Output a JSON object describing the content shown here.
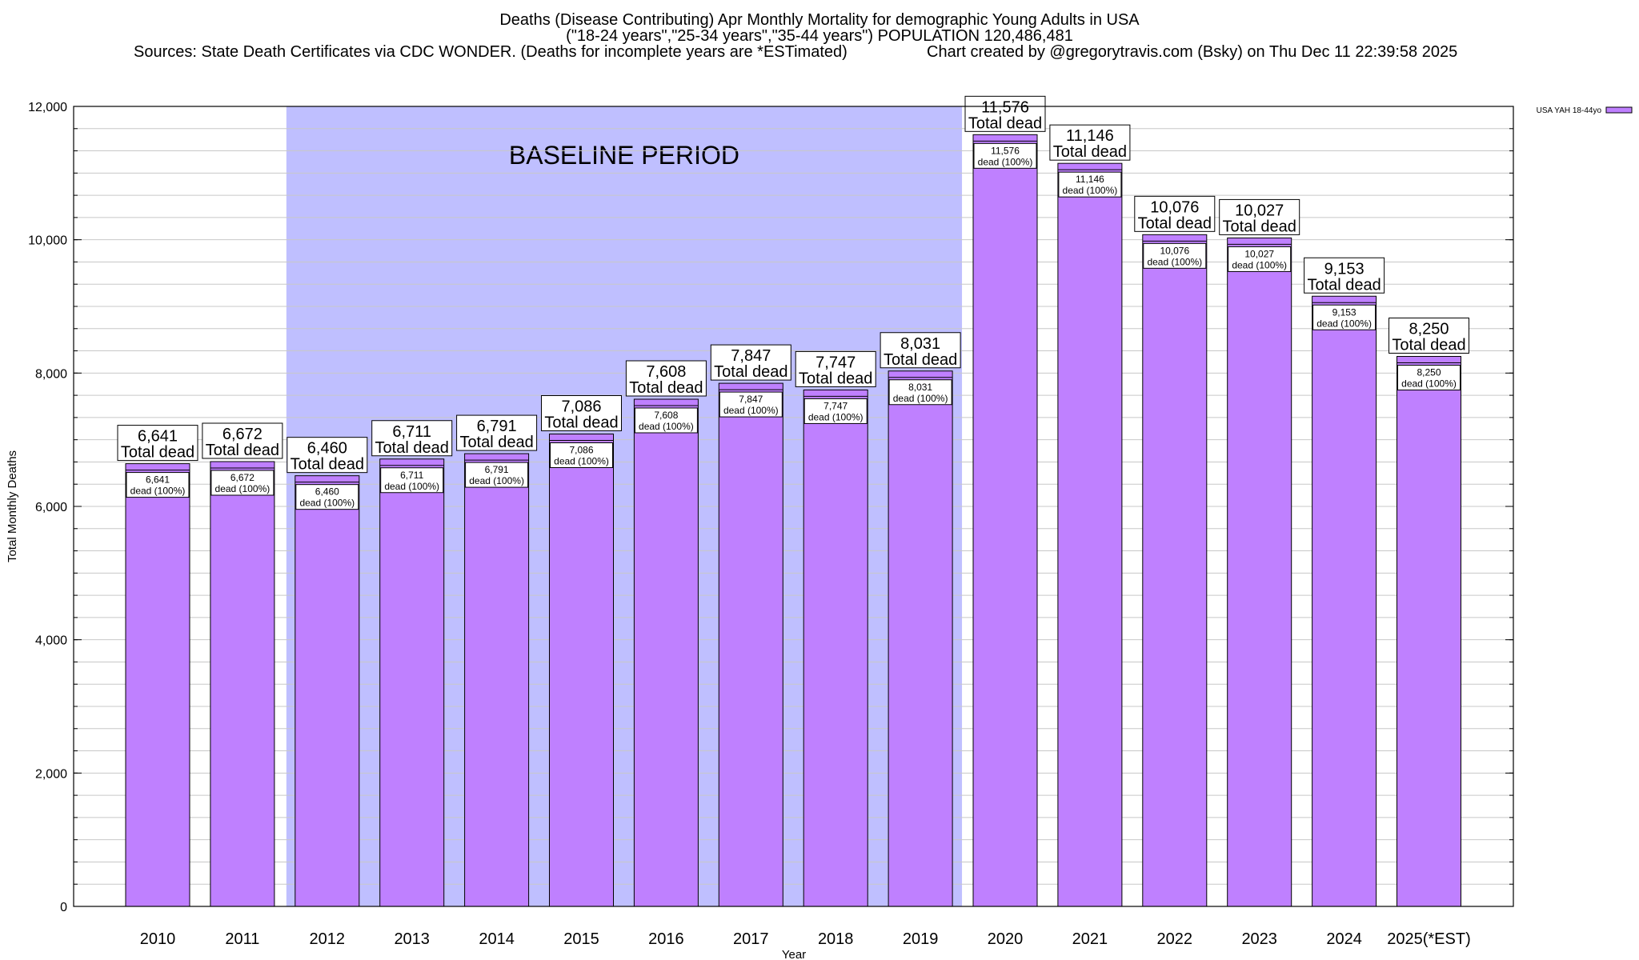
{
  "title": {
    "line1": "Deaths (Disease Contributing) Apr Monthly Mortality for demographic Young Adults in USA",
    "line2": "(\"18-24 years\",\"25-34 years\",\"35-44 years\") POPULATION 120,486,481",
    "sources": "Sources: State Death Certificates via CDC WONDER. (Deaths for incomplete years are *ESTimated)",
    "credit": "Chart created by @gregorytravis.com (Bsky) on Thu Dec 11 22:39:58 2025"
  },
  "colors": {
    "bar": "#bf80ff",
    "bar_cap": "#a060f0",
    "baseline_band": "#bfbfff",
    "grid": "#c8c8c8"
  },
  "chart_data": {
    "type": "bar",
    "xlabel": "Year",
    "ylabel": "Total Monthly Deaths",
    "ylim": [
      0,
      12000
    ],
    "yticks": [
      0,
      2000,
      4000,
      6000,
      8000,
      10000,
      12000
    ],
    "ytick_labels": [
      "0",
      "2,000",
      "4,000",
      "6,000",
      "8,000",
      "10,000",
      "12,000"
    ],
    "categories": [
      "2010",
      "2011",
      "2012",
      "2013",
      "2014",
      "2015",
      "2016",
      "2017",
      "2018",
      "2019",
      "2020",
      "2021",
      "2022",
      "2023",
      "2024",
      "2025(*EST)"
    ],
    "series": [
      {
        "name": "USA YAH 18-44yo",
        "values": [
          6641,
          6672,
          6460,
          6711,
          6791,
          7086,
          7608,
          7847,
          7747,
          8031,
          11576,
          11146,
          10076,
          10027,
          9153,
          8250
        ]
      }
    ],
    "value_labels": [
      "6,641",
      "6,672",
      "6,460",
      "6,711",
      "6,791",
      "7,086",
      "7,608",
      "7,847",
      "7,747",
      "8,031",
      "11,576",
      "11,146",
      "10,076",
      "10,027",
      "9,153",
      "8,250"
    ],
    "total_label_text": "Total dead",
    "inner_label_text": "dead (100%)",
    "annotation": {
      "text": "BASELINE PERIOD",
      "from_category": "2012",
      "to_category": "2019"
    },
    "legend": {
      "placement": "top-right",
      "entries": [
        "USA YAH 18-44yo"
      ]
    },
    "grid": true
  }
}
